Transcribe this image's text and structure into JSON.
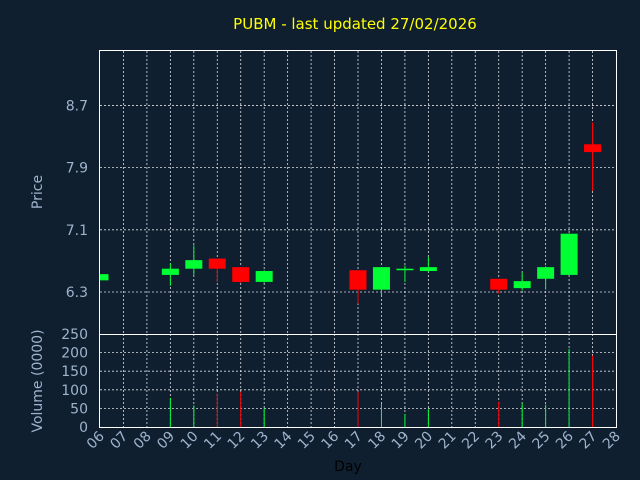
{
  "chart_data": {
    "type": "candlestick",
    "title": "PUBM - last updated 27/02/2026",
    "price_axis": {
      "label": "Price",
      "ticks": [
        "6.3",
        "7.1",
        "7.9",
        "8.7"
      ],
      "range": [
        5.76,
        9.4
      ]
    },
    "volume_axis": {
      "label": "Volume (0000)",
      "ticks": [
        "0",
        "50",
        "100",
        "150",
        "200",
        "250"
      ],
      "range": [
        0,
        250
      ]
    },
    "xlabel": "Day",
    "x_ticks": [
      "06",
      "07",
      "08",
      "09",
      "10",
      "11",
      "12",
      "13",
      "14",
      "15",
      "16",
      "17",
      "18",
      "19",
      "20",
      "21",
      "22",
      "23",
      "24",
      "25",
      "26",
      "27",
      "28"
    ],
    "grid": true,
    "colors": {
      "up": "#00ff33",
      "down": "#ff0000",
      "title": "#ffff00",
      "axis_text": "#9fb3cc",
      "background": "#0f1f30",
      "frame": "#ffffff"
    },
    "candles": [
      {
        "day": "06",
        "open": 6.45,
        "close": 6.53,
        "high": 6.53,
        "low": 6.45,
        "volume": 0
      },
      {
        "day": "09",
        "open": 6.52,
        "close": 6.6,
        "high": 6.67,
        "low": 6.38,
        "volume": 78
      },
      {
        "day": "10",
        "open": 6.6,
        "close": 6.71,
        "high": 6.9,
        "low": 6.52,
        "volume": 58
      },
      {
        "day": "11",
        "open": 6.73,
        "close": 6.6,
        "high": 6.73,
        "low": 6.43,
        "volume": 90
      },
      {
        "day": "12",
        "open": 6.62,
        "close": 6.43,
        "high": 6.62,
        "low": 6.42,
        "volume": 95
      },
      {
        "day": "13",
        "open": 6.43,
        "close": 6.57,
        "high": 6.58,
        "low": 6.42,
        "volume": 50
      },
      {
        "day": "17",
        "open": 6.58,
        "close": 6.33,
        "high": 6.58,
        "low": 6.15,
        "volume": 95
      },
      {
        "day": "18",
        "open": 6.33,
        "close": 6.62,
        "high": 6.62,
        "low": 6.26,
        "volume": 62
      },
      {
        "day": "19",
        "open": 6.58,
        "close": 6.6,
        "high": 6.64,
        "low": 6.43,
        "volume": 35
      },
      {
        "day": "20",
        "open": 6.57,
        "close": 6.62,
        "high": 6.75,
        "low": 6.56,
        "volume": 48
      },
      {
        "day": "23",
        "open": 6.47,
        "close": 6.33,
        "high": 6.47,
        "low": 6.28,
        "volume": 68
      },
      {
        "day": "24",
        "open": 6.35,
        "close": 6.44,
        "high": 6.55,
        "low": 6.32,
        "volume": 65
      },
      {
        "day": "25",
        "open": 6.47,
        "close": 6.62,
        "high": 6.63,
        "low": 6.33,
        "volume": 60
      },
      {
        "day": "26",
        "open": 6.52,
        "close": 7.05,
        "high": 7.05,
        "low": 6.52,
        "volume": 210
      },
      {
        "day": "27",
        "open": 8.2,
        "close": 8.1,
        "high": 8.48,
        "low": 7.6,
        "volume": 192
      }
    ]
  }
}
